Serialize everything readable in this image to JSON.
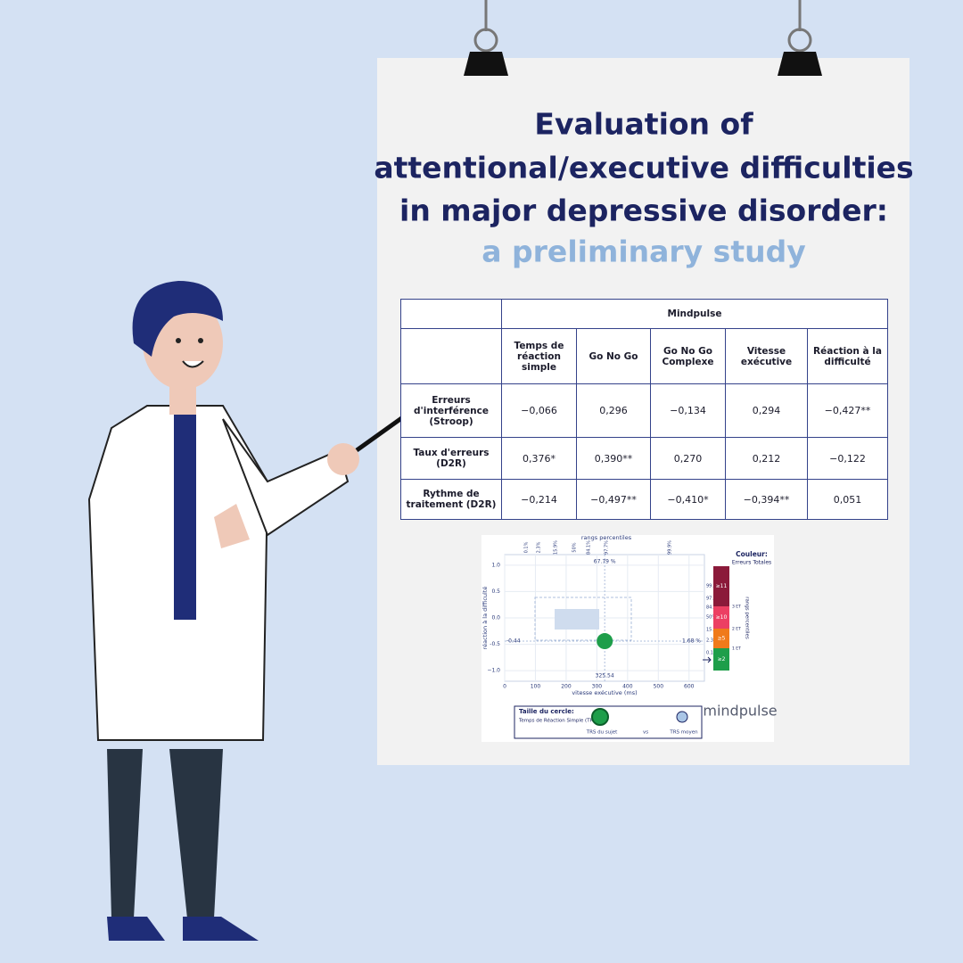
{
  "poster": {
    "title_lines": [
      "Evaluation of",
      "attentional/executive difficulties",
      "in major depressive disorder:"
    ],
    "subtitle": "a preliminary study"
  },
  "table": {
    "group_header": "Mindpulse",
    "columns": [
      "Temps de réaction simple",
      "Go No Go",
      "Go No Go Complexe",
      "Vitesse exécutive",
      "Réaction à la difficulté"
    ],
    "rows": [
      {
        "label": "Erreurs d'interférence (Stroop)",
        "cells": [
          "−0,066",
          "0,296",
          "−0,134",
          "0,294",
          "−0,427**"
        ]
      },
      {
        "label": "Taux d'erreurs (D2R)",
        "cells": [
          "0,376*",
          "0,390**",
          "0,270",
          "0,212",
          "−0,122"
        ]
      },
      {
        "label": "Rythme de traitement (D2R)",
        "cells": [
          "−0,214",
          "−0,497**",
          "−0,410*",
          "−0,394**",
          "0,051"
        ]
      }
    ]
  },
  "figure": {
    "top_axis_label": "rangs percentiles",
    "percentiles": [
      "0.1%",
      "2.3%",
      "15.9%",
      "50%",
      "84.1%",
      "97.7%",
      "99.9%"
    ],
    "y_label": "réaction à la difficulté",
    "x_label": "vitesse exécutive (ms)",
    "xlim": [
      0,
      650
    ],
    "ylim": [
      -1.2,
      1.2
    ],
    "xticks": [
      0,
      100,
      200,
      300,
      400,
      500,
      600
    ],
    "yticks": [
      {
        "value": -1,
        "label": "−1.0"
      },
      -0.5,
      {
        "value": 0,
        "label": "0.0"
      },
      0.5,
      {
        "value": 1,
        "label": "1.0"
      }
    ],
    "point": {
      "x": 325.54,
      "y": -0.44,
      "color": "#1e9e4a"
    },
    "annotations": [
      "67.79 %",
      "1.68 %"
    ],
    "color_legend": {
      "title": "Couleur:",
      "subtitle": "Erreurs Totales",
      "levels": [
        {
          "label": "≥11",
          "color": "#8b1a3a"
        },
        {
          "label": "≥10",
          "color": "#ec3f63"
        },
        {
          "label": "≥5",
          "color": "#f07a1a"
        },
        {
          "label": "≥2",
          "color": "#1e9e4a"
        }
      ],
      "sd_labels": [
        "3 ET",
        "2 ET",
        "1 ET"
      ],
      "axis_label": "rangs percentiles"
    },
    "size_legend": {
      "title": "Taille du cercle:",
      "subtitle": "Temps de Réaction Simple (TRS)",
      "subject": "TRS du sujet",
      "vs": "vs",
      "mean": "TRS moyen"
    },
    "brand": "mindpulse"
  }
}
